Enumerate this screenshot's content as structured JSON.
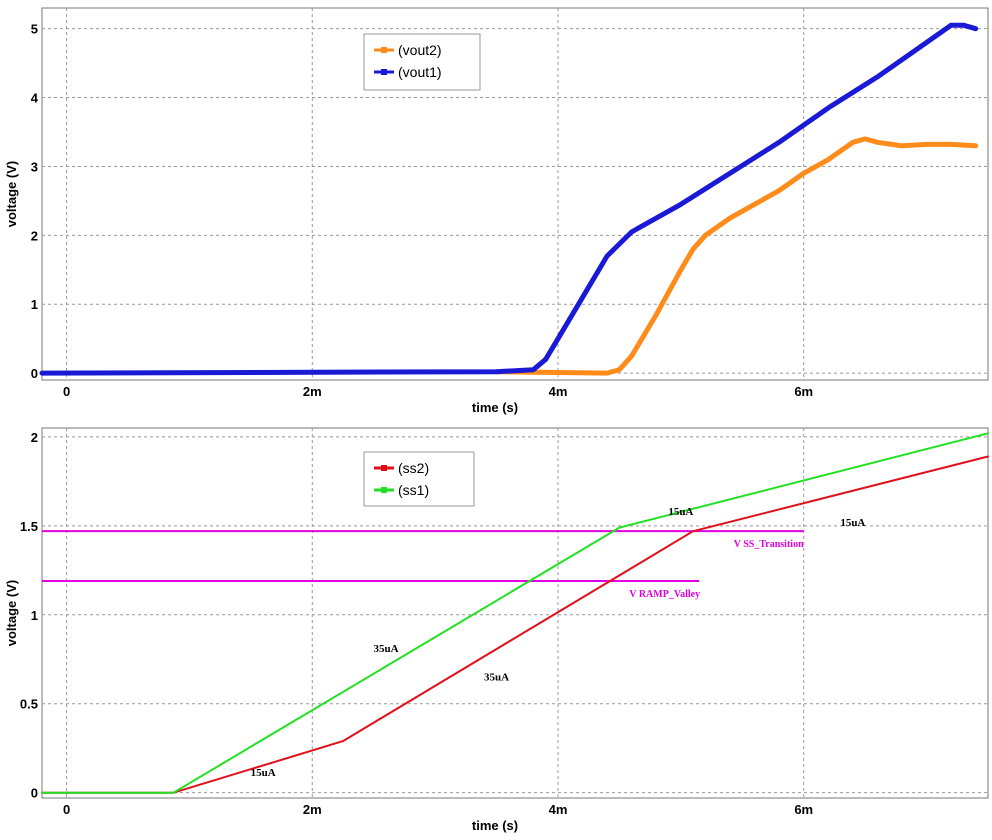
{
  "chart_data": [
    {
      "type": "line",
      "title": "",
      "xlabel": "time (s)",
      "ylabel": "voltage (V)",
      "xlim": [
        -0.0002,
        0.0075
      ],
      "ylim": [
        -0.1,
        5.3
      ],
      "x_ticks": [
        0,
        0.002,
        0.004,
        0.006
      ],
      "x_tick_labels": [
        "0",
        "2m",
        "4m",
        "6m"
      ],
      "y_ticks": [
        0,
        1,
        2,
        3,
        4,
        5
      ],
      "y_tick_labels": [
        "0",
        "1",
        "2",
        "3",
        "4",
        "5"
      ],
      "grid": true,
      "legend_position": "top-center",
      "series": [
        {
          "name": "(vout2)",
          "color": "#ff8c1a",
          "x": [
            0.0035,
            0.0044,
            0.0045,
            0.0046,
            0.0048,
            0.005,
            0.0051,
            0.0052,
            0.0054,
            0.0056,
            0.0058,
            0.006,
            0.0062,
            0.0064,
            0.0065,
            0.0066,
            0.0068,
            0.007,
            0.0072,
            0.0074
          ],
          "y": [
            0.02,
            0.0,
            0.05,
            0.25,
            0.85,
            1.5,
            1.8,
            2.0,
            2.25,
            2.45,
            2.65,
            2.9,
            3.1,
            3.35,
            3.4,
            3.35,
            3.3,
            3.32,
            3.32,
            3.3
          ]
        },
        {
          "name": "(vout1)",
          "color": "#1a1ad6",
          "x": [
            -0.0002,
            0.0035,
            0.0038,
            0.0039,
            0.004,
            0.0042,
            0.0044,
            0.0046,
            0.0048,
            0.005,
            0.0054,
            0.0058,
            0.0062,
            0.0066,
            0.007,
            0.0072,
            0.0073,
            0.0074
          ],
          "y": [
            0.0,
            0.02,
            0.05,
            0.2,
            0.5,
            1.1,
            1.7,
            2.05,
            2.25,
            2.45,
            2.9,
            3.35,
            3.85,
            4.3,
            4.8,
            5.05,
            5.05,
            5.0
          ]
        }
      ],
      "annotations": []
    },
    {
      "type": "line",
      "title": "",
      "xlabel": "time (s)",
      "ylabel": "voltage (V)",
      "xlim": [
        -0.0002,
        0.0075
      ],
      "ylim": [
        -0.03,
        2.05
      ],
      "x_ticks": [
        0,
        0.002,
        0.004,
        0.006
      ],
      "x_tick_labels": [
        "0",
        "2m",
        "4m",
        "6m"
      ],
      "y_ticks": [
        0,
        0.5,
        1,
        1.5,
        2
      ],
      "y_tick_labels": [
        "0",
        "0.5",
        "1",
        "1.5",
        "2"
      ],
      "grid": true,
      "legend_position": "top-center",
      "series": [
        {
          "name": "(ss2)",
          "color": "#e0101a",
          "x": [
            -0.0002,
            0.00087,
            0.00225,
            0.0051,
            0.0075
          ],
          "y": [
            0.0,
            0.0,
            0.29,
            1.47,
            1.89
          ]
        },
        {
          "name": "(ss1)",
          "color": "#22e022",
          "x": [
            -0.0002,
            0.00087,
            0.0045,
            0.0075
          ],
          "y": [
            0.0,
            0.0,
            1.49,
            2.02
          ]
        }
      ],
      "reference_lines": [
        {
          "label": "V SS_Transition",
          "y": 1.47,
          "x_end": 0.006,
          "color": "#e000e0"
        },
        {
          "label": "V RAMP_Valley",
          "y": 1.19,
          "x_end": 0.00515,
          "color": "#e000e0"
        }
      ],
      "annotations": [
        {
          "text": "15uA",
          "x": 0.005,
          "y": 1.56
        },
        {
          "text": "15uA",
          "x": 0.0064,
          "y": 1.5
        },
        {
          "text": "35uA",
          "x": 0.0026,
          "y": 0.79
        },
        {
          "text": "35uA",
          "x": 0.0035,
          "y": 0.63
        },
        {
          "text": "15uA",
          "x": 0.0016,
          "y": 0.095
        }
      ]
    }
  ]
}
